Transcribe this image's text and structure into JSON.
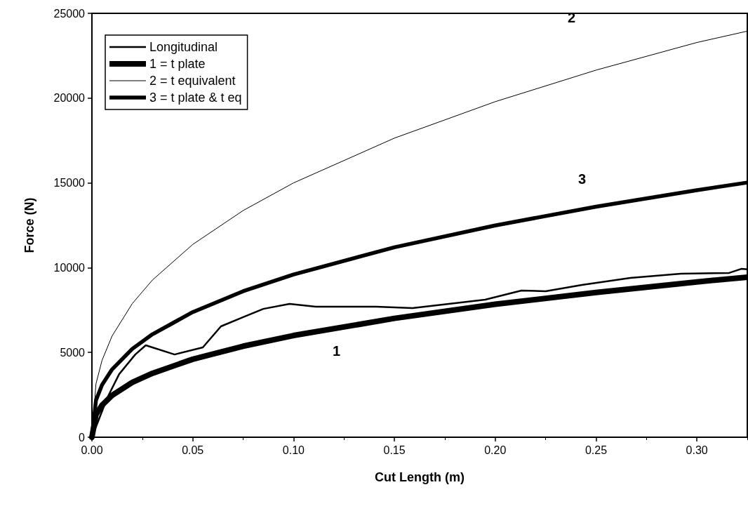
{
  "chart_data": {
    "type": "line",
    "xlabel": "Cut Length (m)",
    "ylabel": "Force (N)",
    "xlim": [
      0,
      0.325
    ],
    "ylim": [
      0,
      25000
    ],
    "xticks": [
      {
        "value": 0,
        "label": "0.00"
      },
      {
        "value": 0.05,
        "label": "0.05"
      },
      {
        "value": 0.1,
        "label": "0.10"
      },
      {
        "value": 0.15,
        "label": "0.15"
      },
      {
        "value": 0.2,
        "label": "0.20"
      },
      {
        "value": 0.25,
        "label": "0.25"
      },
      {
        "value": 0.3,
        "label": "0.30"
      }
    ],
    "yticks": [
      0,
      5000,
      10000,
      15000,
      20000,
      25000
    ],
    "grid": false,
    "legend": "top left",
    "marker": "none",
    "series": [
      {
        "name": "Longitudinal",
        "color": "#000000",
        "x": [
          0,
          0.0076,
          0.0135,
          0.0215,
          0.0267,
          0.041,
          0.055,
          0.064,
          0.075,
          0.085,
          0.098,
          0.111,
          0.141,
          0.159,
          0.195,
          0.213,
          0.225,
          0.243,
          0.267,
          0.292,
          0.316,
          0.322,
          0.325
        ],
        "values": [
          0,
          2320,
          3720,
          4880,
          5420,
          4880,
          5300,
          6540,
          7080,
          7570,
          7860,
          7700,
          7700,
          7620,
          8110,
          8650,
          8610,
          8980,
          9400,
          9640,
          9690,
          9930,
          9900
        ]
      },
      {
        "name": "1 = t plate",
        "color": "#000000",
        "x": [
          0,
          0.002,
          0.005,
          0.01,
          0.02,
          0.03,
          0.05,
          0.075,
          0.1,
          0.15,
          0.2,
          0.25,
          0.3,
          0.325
        ],
        "values": [
          0,
          1330,
          1890,
          2470,
          3230,
          3770,
          4600,
          5370,
          6000,
          7010,
          7840,
          8540,
          9160,
          9440
        ]
      },
      {
        "name": "2 = t equivalent",
        "color": "#000000",
        "x": [
          0,
          0.002,
          0.005,
          0.01,
          0.02,
          0.03,
          0.05,
          0.075,
          0.1,
          0.15,
          0.2,
          0.25,
          0.3,
          0.325
        ],
        "values": [
          0,
          3140,
          4530,
          5970,
          7880,
          9270,
          11370,
          13370,
          15000,
          17640,
          19790,
          21650,
          23280,
          23950
        ]
      },
      {
        "name": "3 = t plate & t eq",
        "color": "#000000",
        "x": [
          0,
          0.002,
          0.005,
          0.01,
          0.02,
          0.03,
          0.05,
          0.075,
          0.1,
          0.15,
          0.2,
          0.25,
          0.3,
          0.325
        ],
        "values": [
          0,
          2170,
          3080,
          4000,
          5210,
          6070,
          7380,
          8610,
          9600,
          11200,
          12490,
          13600,
          14570,
          15020
        ]
      }
    ],
    "annotations": [
      "1",
      "2",
      "3"
    ]
  }
}
